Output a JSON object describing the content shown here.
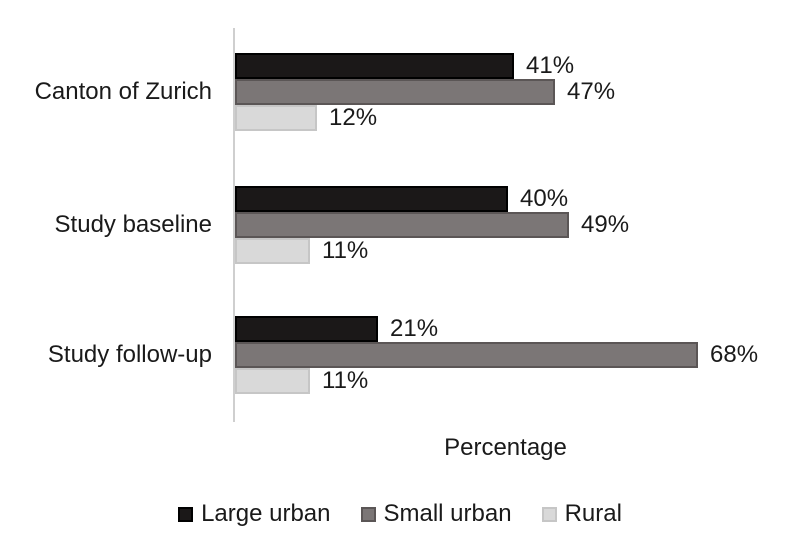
{
  "figure": {
    "background": "#ffffff",
    "axis_line_color": "#cfcfcf",
    "text_color": "#1a1a1a"
  },
  "chart_data": {
    "type": "bar",
    "orientation": "horizontal",
    "title": "",
    "xlabel": "Percentage",
    "ylabel": "",
    "value_suffix": "%",
    "xlim": [
      0,
      80
    ],
    "grid": false,
    "legend_position": "bottom",
    "categories": [
      "Canton of Zurich",
      "Study baseline",
      "Study follow-up"
    ],
    "series": [
      {
        "name": "Large urban",
        "values": [
          41,
          40,
          21
        ],
        "fill": "#1b1818",
        "border": "#000000"
      },
      {
        "name": "Small urban",
        "values": [
          47,
          49,
          68
        ],
        "fill": "#7b7676",
        "border": "#5b5656"
      },
      {
        "name": "Rural",
        "values": [
          12,
          11,
          11
        ],
        "fill": "#d9d9d9",
        "border": "#c6c6c6"
      }
    ]
  }
}
